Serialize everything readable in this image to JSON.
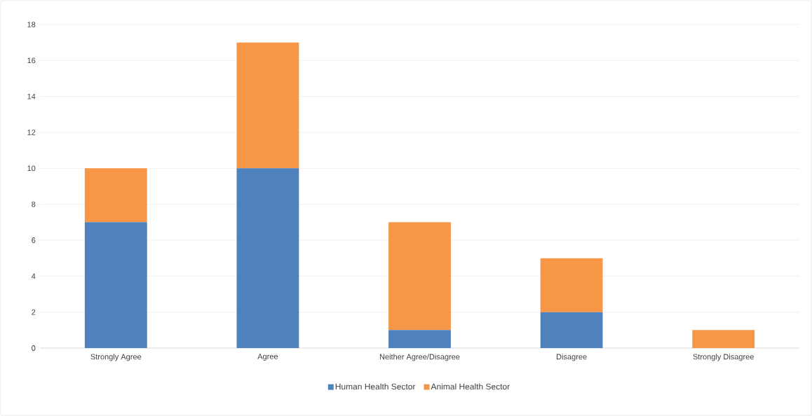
{
  "chart_data": {
    "type": "bar",
    "stacked": true,
    "categories": [
      "Strongly Agree",
      "Agree",
      "Neither Agree/Disagree",
      "Disagree",
      "Strongly Disagree"
    ],
    "series": [
      {
        "name": "Human Health Sector",
        "color": "#4f81bd",
        "values": [
          7,
          10,
          1,
          2,
          0
        ]
      },
      {
        "name": "Animal Health Sector",
        "color": "#f79646",
        "values": [
          3,
          7,
          6,
          3,
          1
        ]
      }
    ],
    "ylim": [
      0,
      18
    ],
    "yticks": [
      0,
      2,
      4,
      6,
      8,
      10,
      12,
      14,
      16,
      18
    ],
    "grid": "y",
    "legend": "bottom"
  }
}
